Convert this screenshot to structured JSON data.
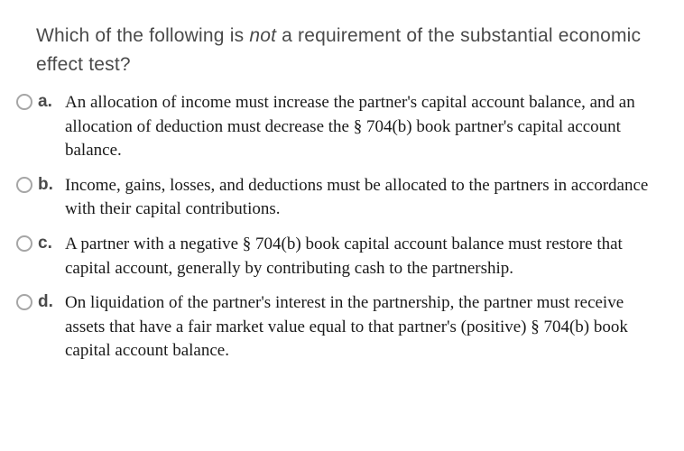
{
  "question": {
    "text_before_em": "Which of the following is ",
    "em_text": "not",
    "text_after_em": " a requirement of the substantial economic effect test?"
  },
  "options": [
    {
      "letter": "a.",
      "text": "An allocation of income must increase the partner's capital account balance, and an allocation of deduction must decrease the § 704(b) book partner's capital account balance."
    },
    {
      "letter": "b.",
      "text": "Income, gains, losses, and deductions must be allocated to the partners in accordance with their capital contributions."
    },
    {
      "letter": "c.",
      "text": "A partner with a negative § 704(b) book capital account balance must restore that capital account, generally by contributing cash to the partnership."
    },
    {
      "letter": "d.",
      "text": "On liquidation of the partner's interest in the partnership, the partner must receive assets that have a fair market value equal to that partner's (positive) § 704(b) book capital account balance."
    }
  ]
}
